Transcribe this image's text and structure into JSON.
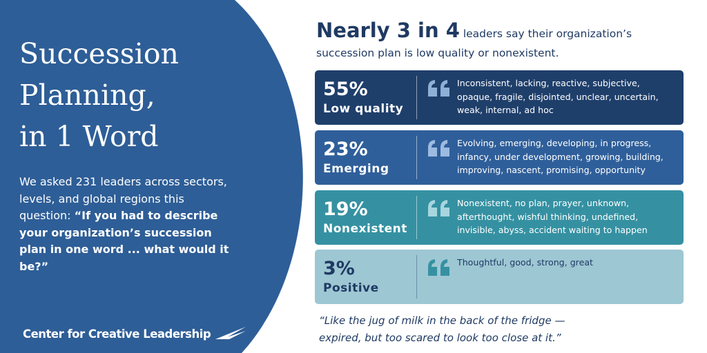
{
  "left": {
    "title_lines": [
      "Succession",
      "Planning,",
      "in 1 Word"
    ],
    "intro": "We asked 231 leaders across sectors, levels, and global regions this question:",
    "question": "“If you had to describe your organization’s succession plan in one word ... what would it be?”",
    "brand": "Center for Creative Leadership"
  },
  "right": {
    "headline": "Nearly 3 in 4",
    "subhead": "leaders say their organization’s succession plan is low quality or nonexistent.",
    "cards": [
      {
        "percent": "55%",
        "label": "Low quality",
        "words": "Inconsistent, lacking, reactive, subjective, opaque, fragile, disjointed, unclear, uncertain, weak, internal, ad hoc"
      },
      {
        "percent": "23%",
        "label": "Emerging",
        "words": "Evolving, emerging, developing, in progress, infancy, under development, growing, building, improving, nascent, promising, opportunity"
      },
      {
        "percent": "19%",
        "label": "Nonexistent",
        "words": "Nonexistent, no plan, prayer, unknown, afterthought, wishful thinking, undefined, invisible, abyss, accident waiting to happen"
      },
      {
        "percent": "3%",
        "label": "Positive",
        "words": "Thoughtful, good, strong, great"
      }
    ],
    "quote": "“Like the jug of milk in the back of the fridge — expired, but too scared to look too close at it.”"
  }
}
